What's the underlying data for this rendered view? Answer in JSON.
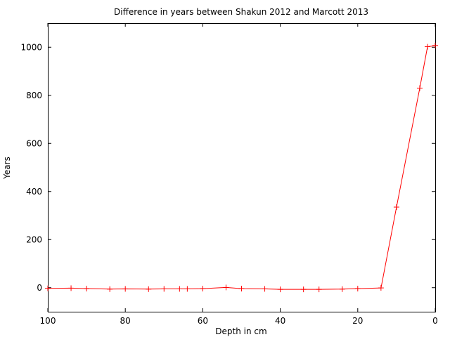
{
  "chart_data": {
    "type": "line",
    "title": "Difference in years between Shakun 2012 and Marcott 2013",
    "xlabel": "Depth in cm",
    "ylabel": "Years",
    "xlim": [
      100,
      0
    ],
    "ylim": [
      -100,
      1100
    ],
    "x_ticks": [
      "100",
      "80",
      "60",
      "40",
      "20",
      "0"
    ],
    "y_ticks": [
      "0",
      "200",
      "400",
      "600",
      "800",
      "1000"
    ],
    "grid": false,
    "legend": "none",
    "series": [
      {
        "color": "#ff0000",
        "marker": "plus",
        "x": [
          100,
          94,
          90,
          84,
          80,
          74,
          70,
          66,
          64,
          60,
          54,
          50,
          44,
          40,
          34,
          30,
          24,
          20,
          14,
          10,
          4,
          2,
          0
        ],
        "y": [
          -3,
          -2,
          -4,
          -6,
          -5,
          -6,
          -5,
          -5,
          -5,
          -4,
          1,
          -4,
          -5,
          -7,
          -7,
          -7,
          -6,
          -4,
          -1,
          335,
          830,
          1002,
          1007
        ]
      }
    ]
  }
}
